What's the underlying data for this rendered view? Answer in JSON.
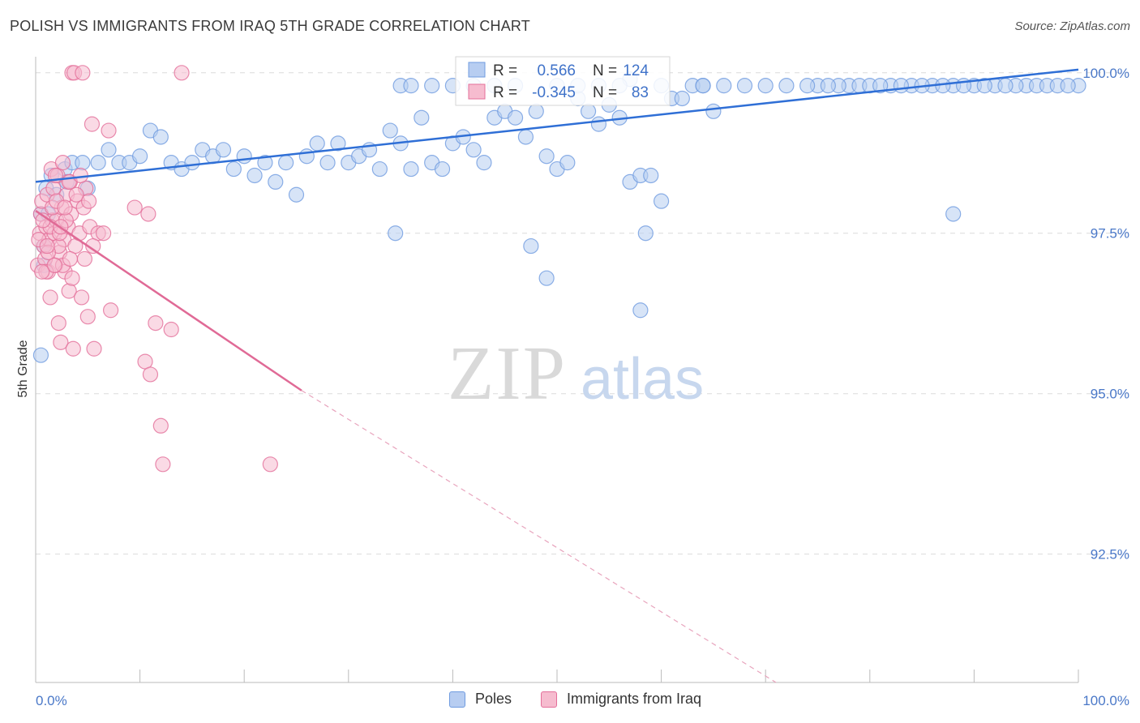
{
  "title": "POLISH VS IMMIGRANTS FROM IRAQ 5TH GRADE CORRELATION CHART",
  "source": "Source: ZipAtlas.com",
  "watermark": {
    "zip": "ZIP",
    "atlas": "atlas"
  },
  "chart_data": {
    "type": "scatter",
    "ylabel": "5th Grade",
    "xlim": [
      0,
      100
    ],
    "ylim": [
      90.5,
      100.25
    ],
    "x_tick_labels": [
      "0.0%",
      "100.0%"
    ],
    "y_ticks": [
      100.0,
      97.5,
      95.0,
      92.5
    ],
    "y_tick_labels": [
      "100.0%",
      "97.5%",
      "95.0%",
      "92.5%"
    ],
    "grid": true,
    "legend_position": "top-center",
    "stats": [
      {
        "r_label": "R =",
        "r": "0.566",
        "n_label": "N =",
        "n": "124"
      },
      {
        "r_label": "R =",
        "r": "-0.345",
        "n_label": "N =",
        "n": "83"
      }
    ],
    "series": [
      {
        "name": "Poles",
        "color": "#6f9be0",
        "fill": "#b7cdf1",
        "trend": {
          "x0": 0,
          "y0": 98.3,
          "x1": 100,
          "y1": 100.05
        },
        "points": [
          [
            0.5,
            97.8
          ],
          [
            0.8,
            97.3
          ],
          [
            1,
            98.2
          ],
          [
            1.5,
            98.4
          ],
          [
            2,
            98.1
          ],
          [
            2.8,
            98.5
          ],
          [
            3,
            98.3
          ],
          [
            3.5,
            98.6
          ],
          [
            4.5,
            98.6
          ],
          [
            5,
            98.2
          ],
          [
            6,
            98.6
          ],
          [
            7,
            98.8
          ],
          [
            8,
            98.6
          ],
          [
            9,
            98.6
          ],
          [
            10,
            98.7
          ],
          [
            11,
            99.1
          ],
          [
            12,
            99
          ],
          [
            13,
            98.6
          ],
          [
            14,
            98.5
          ],
          [
            15,
            98.6
          ],
          [
            16,
            98.8
          ],
          [
            17,
            98.7
          ],
          [
            18,
            98.8
          ],
          [
            19,
            98.5
          ],
          [
            20,
            98.7
          ],
          [
            21,
            98.4
          ],
          [
            22,
            98.6
          ],
          [
            23,
            98.3
          ],
          [
            24,
            98.6
          ],
          [
            25,
            98.1
          ],
          [
            26,
            98.7
          ],
          [
            27,
            98.9
          ],
          [
            28,
            98.6
          ],
          [
            29,
            98.9
          ],
          [
            30,
            98.6
          ],
          [
            31,
            98.7
          ],
          [
            32,
            98.8
          ],
          [
            33,
            98.5
          ],
          [
            34,
            99.1
          ],
          [
            35,
            98.9
          ],
          [
            36,
            98.5
          ],
          [
            37,
            99.3
          ],
          [
            38,
            98.6
          ],
          [
            39,
            98.5
          ],
          [
            40,
            98.9
          ],
          [
            41,
            99
          ],
          [
            42,
            98.8
          ],
          [
            43,
            98.6
          ],
          [
            44,
            99.3
          ],
          [
            45,
            99.4
          ],
          [
            46,
            99.3
          ],
          [
            47,
            99
          ],
          [
            48,
            99.4
          ],
          [
            49,
            98.7
          ],
          [
            50,
            98.5
          ],
          [
            51,
            98.6
          ],
          [
            52,
            99.6
          ],
          [
            53,
            99.4
          ],
          [
            54,
            99.2
          ],
          [
            55,
            99.5
          ],
          [
            56,
            99.3
          ],
          [
            57,
            98.3
          ],
          [
            58,
            98.4
          ],
          [
            59,
            98.4
          ],
          [
            60,
            98
          ],
          [
            61,
            99.6
          ],
          [
            62,
            99.6
          ],
          [
            63,
            99.8
          ],
          [
            64,
            99.8
          ],
          [
            65,
            99.4
          ],
          [
            68,
            99.8
          ],
          [
            72,
            99.8
          ],
          [
            75,
            99.8
          ],
          [
            78,
            99.8
          ],
          [
            82,
            99.8
          ],
          [
            86,
            99.8
          ],
          [
            88,
            99.8
          ],
          [
            90,
            99.8
          ],
          [
            95,
            99.8
          ],
          [
            100,
            99.8
          ],
          [
            34.5,
            97.5
          ],
          [
            47.5,
            97.3
          ],
          [
            49,
            96.8
          ],
          [
            58,
            96.3
          ],
          [
            58.5,
            97.5
          ],
          [
            88,
            97.8
          ],
          [
            0.5,
            95.6
          ],
          [
            0.8,
            97
          ],
          [
            1.2,
            97.8
          ],
          [
            57,
            99.9
          ],
          [
            35,
            99.8
          ],
          [
            36,
            99.8
          ],
          [
            38,
            99.8
          ],
          [
            40,
            99.8
          ],
          [
            42,
            99.8
          ],
          [
            44,
            99.8
          ],
          [
            46,
            99.8
          ],
          [
            50,
            99.8
          ],
          [
            52,
            99.8
          ],
          [
            54,
            99.8
          ],
          [
            56,
            99.8
          ],
          [
            60,
            99.8
          ],
          [
            64,
            99.8
          ],
          [
            66,
            99.8
          ],
          [
            70,
            99.8
          ],
          [
            74,
            99.8
          ],
          [
            77,
            99.8
          ],
          [
            79,
            99.8
          ],
          [
            84,
            99.8
          ],
          [
            85,
            99.8
          ],
          [
            87,
            99.8
          ],
          [
            89,
            99.8
          ],
          [
            92,
            99.8
          ],
          [
            94,
            99.8
          ],
          [
            96,
            99.8
          ],
          [
            97,
            99.8
          ],
          [
            98,
            99.8
          ],
          [
            99,
            99.8
          ],
          [
            93,
            99.8
          ],
          [
            80,
            99.8
          ],
          [
            81,
            99.8
          ],
          [
            83,
            99.8
          ],
          [
            91,
            99.8
          ],
          [
            76,
            99.8
          ]
        ]
      },
      {
        "name": "Immigrants from Iraq",
        "color": "#e46f9a",
        "fill": "#f6bccf",
        "trend": {
          "x0": 0,
          "y0": 97.85,
          "x1": 25.5,
          "y1": 95.05
        },
        "trend_dashed": {
          "x0": 25.5,
          "y0": 95.05,
          "x1": 71,
          "y1": 90.5
        },
        "points": [
          [
            0.2,
            97
          ],
          [
            0.4,
            97.5
          ],
          [
            0.5,
            97.8
          ],
          [
            0.6,
            98
          ],
          [
            0.8,
            97.3
          ],
          [
            1,
            97.6
          ],
          [
            1.1,
            98.1
          ],
          [
            1.2,
            96.9
          ],
          [
            1.3,
            97.4
          ],
          [
            1.5,
            98.5
          ],
          [
            1.6,
            97.7
          ],
          [
            1.7,
            98.2
          ],
          [
            1.8,
            97.5
          ],
          [
            1.9,
            97
          ],
          [
            2,
            97.7
          ],
          [
            2.1,
            98.4
          ],
          [
            2.2,
            96.1
          ],
          [
            2.3,
            97.2
          ],
          [
            2.4,
            95.8
          ],
          [
            2.5,
            97.9
          ],
          [
            2.6,
            98.6
          ],
          [
            2.7,
            97.4
          ],
          [
            2.8,
            96.9
          ],
          [
            3,
            98.1
          ],
          [
            3.1,
            97.6
          ],
          [
            3.2,
            96.6
          ],
          [
            3.3,
            98.3
          ],
          [
            3.4,
            97.8
          ],
          [
            3.5,
            96.8
          ],
          [
            3.6,
            95.7
          ],
          [
            3.8,
            97.3
          ],
          [
            4,
            98
          ],
          [
            4.2,
            97.5
          ],
          [
            4.4,
            96.5
          ],
          [
            4.6,
            97.9
          ],
          [
            4.8,
            98.2
          ],
          [
            5,
            96.2
          ],
          [
            5.2,
            97.6
          ],
          [
            5.4,
            99.2
          ],
          [
            5.6,
            95.7
          ],
          [
            6,
            97.5
          ],
          [
            6.5,
            97.5
          ],
          [
            7,
            99.1
          ],
          [
            7.2,
            96.3
          ],
          [
            9.5,
            97.9
          ],
          [
            10.5,
            95.5
          ],
          [
            10.8,
            97.8
          ],
          [
            11,
            95.3
          ],
          [
            11.5,
            96.1
          ],
          [
            12,
            94.5
          ],
          [
            12.2,
            93.9
          ],
          [
            13,
            96
          ],
          [
            14,
            100
          ],
          [
            22.5,
            93.9
          ],
          [
            3.5,
            100
          ],
          [
            3.7,
            100
          ],
          [
            4.5,
            100
          ],
          [
            1.9,
            98.4
          ],
          [
            2.2,
            97.3
          ],
          [
            1.4,
            96.5
          ],
          [
            0.9,
            97.1
          ],
          [
            1.0,
            96.9
          ],
          [
            1.2,
            97.2
          ],
          [
            1.4,
            97.6
          ],
          [
            1.6,
            97.9
          ],
          [
            2.0,
            98.0
          ],
          [
            2.3,
            97.5
          ],
          [
            2.6,
            97.0
          ],
          [
            2.9,
            97.7
          ],
          [
            3.2,
            98.3
          ],
          [
            3.9,
            98.1
          ],
          [
            4.3,
            98.4
          ],
          [
            4.7,
            97.1
          ],
          [
            5.1,
            98.0
          ],
          [
            5.5,
            97.3
          ],
          [
            0.3,
            97.4
          ],
          [
            0.7,
            97.7
          ],
          [
            1.1,
            97.3
          ],
          [
            1.8,
            97.0
          ],
          [
            2.4,
            97.6
          ],
          [
            2.8,
            97.9
          ],
          [
            3.3,
            97.1
          ],
          [
            0.6,
            96.9
          ]
        ]
      }
    ]
  },
  "legend": {
    "items": [
      {
        "label": "Poles"
      },
      {
        "label": "Immigrants from Iraq"
      }
    ]
  }
}
